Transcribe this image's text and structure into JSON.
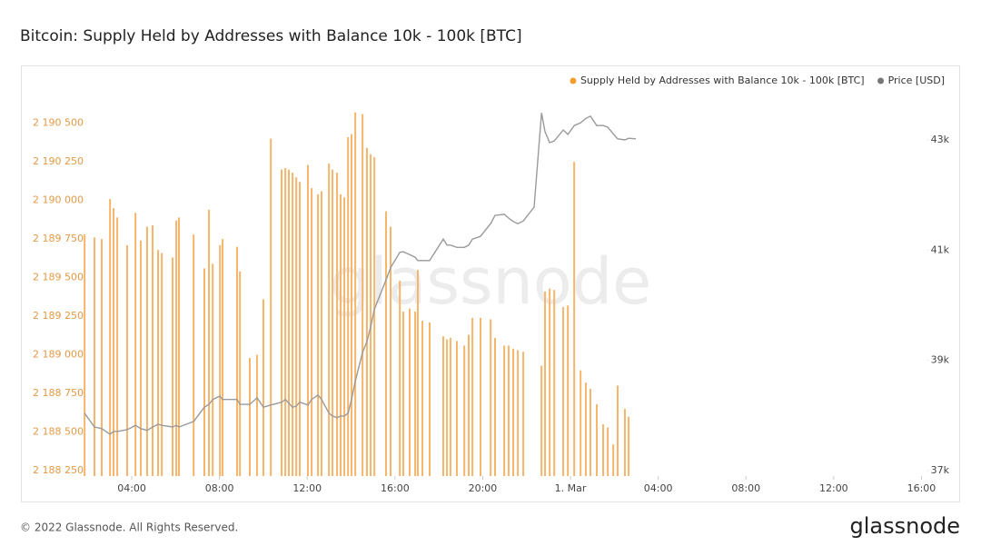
{
  "chart_data": {
    "type": "bar_line",
    "title": "Bitcoin: Supply Held by Addresses with Balance 10k - 100k [BTC]",
    "watermark": "glassnode",
    "footer": "© 2022 Glassnode. All Rights Reserved.",
    "logo": "glassnode",
    "x": [
      1.85,
      2.3,
      2.63,
      3.01,
      3.17,
      3.34,
      3.79,
      4.17,
      4.41,
      4.7,
      4.95,
      5.2,
      5.37,
      5.86,
      6.03,
      6.15,
      6.82,
      7.31,
      7.52,
      7.69,
      8.02,
      8.14,
      8.8,
      8.93,
      9.38,
      9.71,
      10.0,
      10.34,
      10.83,
      11.0,
      11.16,
      11.33,
      11.5,
      11.66,
      12.03,
      12.2,
      12.49,
      12.65,
      12.99,
      13.15,
      13.36,
      13.52,
      13.69,
      13.86,
      14.02,
      14.19,
      14.52,
      14.72,
      14.89,
      15.06,
      15.59,
      15.8,
      16.22,
      16.38,
      16.67,
      16.92,
      17.04,
      17.25,
      17.58,
      18.2,
      18.37,
      18.53,
      18.82,
      19.16,
      19.36,
      19.53,
      19.9,
      20.36,
      20.56,
      20.98,
      21.18,
      21.39,
      21.6,
      21.85,
      22.34,
      22.68,
      22.84,
      23.05,
      23.26,
      23.67,
      23.88,
      24.17,
      24.46,
      24.7,
      24.91,
      25.2,
      25.49,
      25.7,
      25.95,
      26.15,
      26.48,
      26.65,
      26.98
    ],
    "series": [
      {
        "name": "Supply Held by Addresses with Balance 10k - 100k [BTC]",
        "color": "#f5b56b",
        "legend_color": "#f29d2e",
        "kind": "bar",
        "axis": "y",
        "values": [
          2189780,
          2189760,
          2189750,
          2190010,
          2189950,
          2189890,
          2189710,
          2189920,
          2189740,
          2189830,
          2189840,
          2189680,
          2189660,
          2189630,
          2189870,
          2189890,
          2189780,
          2189560,
          2189940,
          2189590,
          2189710,
          2189750,
          2189700,
          2189540,
          2188980,
          2189000,
          2189360,
          2190400,
          2190200,
          2190210,
          2190200,
          2190180,
          2190150,
          2190120,
          2190230,
          2190080,
          2190040,
          2190060,
          2190240,
          2190200,
          2190180,
          2190040,
          2190020,
          2190410,
          2190430,
          2190570,
          2190560,
          2190340,
          2190300,
          2190280,
          2189930,
          2189830,
          2189480,
          2189280,
          2189300,
          2189280,
          2189550,
          2189220,
          2189210,
          2189120,
          2189100,
          2189110,
          2189090,
          2189060,
          2189130,
          2189240,
          2189240,
          2189230,
          2189110,
          2189060,
          2189060,
          2189040,
          2189030,
          2189020,
          null,
          2188930,
          2189410,
          2189430,
          2189420,
          2189310,
          2189320,
          2190250,
          2188900,
          2188820,
          2188780,
          2188680,
          2188550,
          2188530,
          2188420,
          2188800,
          2188650,
          2188600,
          null
        ]
      },
      {
        "name": "Price [USD]",
        "color": "#9a9a9a",
        "legend_color": "#777777",
        "kind": "line",
        "axis": "y2",
        "values": [
          38040,
          37790,
          37760,
          37660,
          37710,
          37710,
          37740,
          37820,
          37760,
          37730,
          37790,
          37840,
          37820,
          37790,
          37820,
          37790,
          37890,
          38150,
          38200,
          38290,
          38350,
          38290,
          38290,
          38200,
          38200,
          38320,
          38150,
          38190,
          38240,
          38290,
          38220,
          38150,
          38170,
          38240,
          38190,
          38290,
          38370,
          38290,
          38040,
          37990,
          37960,
          37990,
          37990,
          38040,
          38290,
          38620,
          39140,
          39340,
          39600,
          39930,
          40460,
          40680,
          40960,
          40970,
          40920,
          40870,
          40810,
          40810,
          40810,
          41200,
          41090,
          41090,
          41050,
          41050,
          41090,
          41200,
          41250,
          41480,
          41630,
          41650,
          41580,
          41520,
          41480,
          41530,
          41780,
          43490,
          43150,
          42950,
          42980,
          43180,
          43100,
          43260,
          43310,
          43390,
          43430,
          43260,
          43260,
          43230,
          43110,
          43020,
          43000,
          43030,
          43020
        ]
      }
    ],
    "xlim": [
      1.72,
      40.23
    ],
    "xticks": [
      {
        "value": 4,
        "label": "04:00"
      },
      {
        "value": 8,
        "label": "08:00"
      },
      {
        "value": 12,
        "label": "12:00"
      },
      {
        "value": 16,
        "label": "16:00"
      },
      {
        "value": 20,
        "label": "20:00"
      },
      {
        "value": 24,
        "label": "1. Mar"
      },
      {
        "value": 28,
        "label": "04:00"
      },
      {
        "value": 32,
        "label": "08:00"
      },
      {
        "value": 36,
        "label": "12:00"
      },
      {
        "value": 40,
        "label": "16:00"
      }
    ],
    "ylim": [
      2188215,
      2190710
    ],
    "yticks": [
      {
        "value": 2188250,
        "label": "2 188 250"
      },
      {
        "value": 2188500,
        "label": "2 188 500"
      },
      {
        "value": 2188750,
        "label": "2 188 750"
      },
      {
        "value": 2189000,
        "label": "2 189 000"
      },
      {
        "value": 2189250,
        "label": "2 189 250"
      },
      {
        "value": 2189500,
        "label": "2 189 500"
      },
      {
        "value": 2189750,
        "label": "2 189 750"
      },
      {
        "value": 2190000,
        "label": "2 190 000"
      },
      {
        "value": 2190250,
        "label": "2 190 250"
      },
      {
        "value": 2190500,
        "label": "2 190 500"
      }
    ],
    "y2lim": [
      36900,
      43890
    ],
    "y2ticks": [
      {
        "value": 37000,
        "label": "37k"
      },
      {
        "value": 39000,
        "label": "39k"
      },
      {
        "value": 41000,
        "label": "41k"
      },
      {
        "value": 43000,
        "label": "43k"
      }
    ],
    "ytick_color": "#e39a45",
    "legend": "top-right"
  }
}
